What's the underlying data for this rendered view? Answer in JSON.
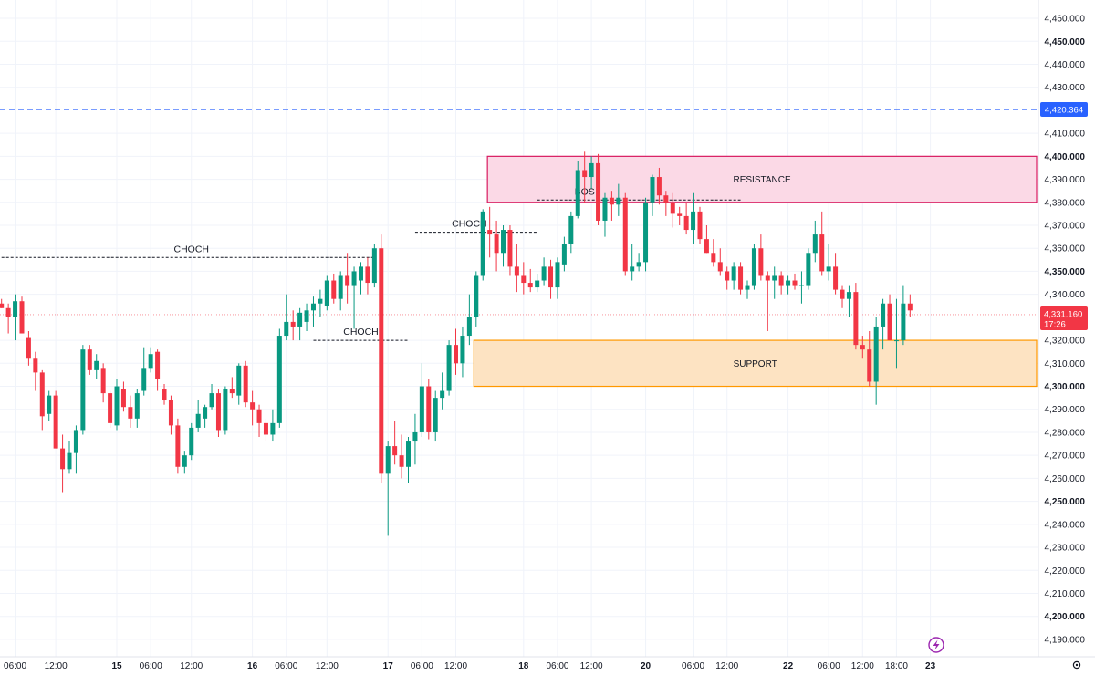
{
  "chart_data": {
    "type": "candlestick",
    "ylim": [
      4186,
      4462
    ],
    "y_ticks": [
      "4,460.000",
      "4,450.000",
      "4,440.000",
      "4,430.000",
      "4,410.000",
      "4,400.000",
      "4,390.000",
      "4,380.000",
      "4,370.000",
      "4,360.000",
      "4,350.000",
      "4,340.000",
      "4,320.000",
      "4,310.000",
      "4,300.000",
      "4,290.000",
      "4,280.000",
      "4,270.000",
      "4,260.000",
      "4,250.000",
      "4,240.000",
      "4,230.000",
      "4,220.000",
      "4,210.000",
      "4,200.000",
      "4,190.000"
    ],
    "y_tick_values": [
      4460,
      4450,
      4440,
      4430,
      4410,
      4400,
      4390,
      4380,
      4370,
      4360,
      4350,
      4340,
      4320,
      4310,
      4300,
      4290,
      4280,
      4270,
      4260,
      4250,
      4240,
      4230,
      4220,
      4210,
      4200,
      4190
    ],
    "y_tick_bold": [
      4450,
      4400,
      4350,
      4300,
      4250,
      4200
    ],
    "x_ticks": [
      {
        "label": "06:00",
        "i": 2,
        "bold": false
      },
      {
        "label": "12:00",
        "i": 8,
        "bold": false
      },
      {
        "label": "15",
        "i": 17,
        "bold": true
      },
      {
        "label": "06:00",
        "i": 22,
        "bold": false
      },
      {
        "label": "12:00",
        "i": 28,
        "bold": false
      },
      {
        "label": "16",
        "i": 37,
        "bold": true
      },
      {
        "label": "06:00",
        "i": 42,
        "bold": false
      },
      {
        "label": "12:00",
        "i": 48,
        "bold": false
      },
      {
        "label": "17",
        "i": 57,
        "bold": true
      },
      {
        "label": "06:00",
        "i": 62,
        "bold": false
      },
      {
        "label": "12:00",
        "i": 67,
        "bold": false
      },
      {
        "label": "18",
        "i": 77,
        "bold": true
      },
      {
        "label": "06:00",
        "i": 82,
        "bold": false
      },
      {
        "label": "12:00",
        "i": 87,
        "bold": false
      },
      {
        "label": "20",
        "i": 95,
        "bold": true
      },
      {
        "label": "06:00",
        "i": 102,
        "bold": false
      },
      {
        "label": "12:00",
        "i": 107,
        "bold": false
      },
      {
        "label": "22",
        "i": 116,
        "bold": true
      },
      {
        "label": "06:00",
        "i": 122,
        "bold": false
      },
      {
        "label": "12:00",
        "i": 127,
        "bold": false
      },
      {
        "label": "18:00",
        "i": 132,
        "bold": false
      },
      {
        "label": "23",
        "i": 137,
        "bold": true
      }
    ],
    "candles": [
      [
        4336,
        4338,
        4334,
        4334
      ],
      [
        4334,
        4336,
        4323,
        4330
      ],
      [
        4330,
        4340,
        4320,
        4337
      ],
      [
        4337,
        4339,
        4323,
        4323
      ],
      [
        4321,
        4324,
        4309,
        4312
      ],
      [
        4312,
        4315,
        4298,
        4306
      ],
      [
        4306,
        4307,
        4281,
        4287
      ],
      [
        4288,
        4298,
        4285,
        4296
      ],
      [
        4296,
        4298,
        4273,
        4273
      ],
      [
        4273,
        4279,
        4254,
        4264
      ],
      [
        4264,
        4276,
        4262,
        4271
      ],
      [
        4271,
        4283,
        4262,
        4281
      ],
      [
        4281,
        4318,
        4279,
        4316
      ],
      [
        4316,
        4318,
        4305,
        4307
      ],
      [
        4307,
        4314,
        4303,
        4311
      ],
      [
        4308,
        4310,
        4293,
        4297
      ],
      [
        4297,
        4298,
        4282,
        4284
      ],
      [
        4283,
        4303,
        4281,
        4300
      ],
      [
        4299,
        4302,
        4289,
        4291
      ],
      [
        4291,
        4296,
        4282,
        4286
      ],
      [
        4286,
        4299,
        4282,
        4297
      ],
      [
        4298,
        4317,
        4296,
        4308
      ],
      [
        4308,
        4317,
        4306,
        4314
      ],
      [
        4315,
        4316,
        4298,
        4303
      ],
      [
        4299,
        4301,
        4292,
        4294
      ],
      [
        4294,
        4296,
        4279,
        4283
      ],
      [
        4283,
        4286,
        4262,
        4265
      ],
      [
        4265,
        4272,
        4262,
        4270
      ],
      [
        4270,
        4284,
        4268,
        4282
      ],
      [
        4282,
        4294,
        4280,
        4288
      ],
      [
        4286,
        4292,
        4282,
        4291
      ],
      [
        4291,
        4301,
        4290,
        4297
      ],
      [
        4297,
        4299,
        4278,
        4281
      ],
      [
        4281,
        4300,
        4279,
        4299
      ],
      [
        4299,
        4304,
        4295,
        4297
      ],
      [
        4296,
        4310,
        4292,
        4309
      ],
      [
        4309,
        4311,
        4291,
        4293
      ],
      [
        4293,
        4298,
        4283,
        4290
      ],
      [
        4290,
        4292,
        4278,
        4284
      ],
      [
        4284,
        4286,
        4276,
        4279
      ],
      [
        4279,
        4290,
        4276,
        4284
      ],
      [
        4284,
        4325,
        4282,
        4322
      ],
      [
        4322,
        4340,
        4320,
        4328
      ],
      [
        4328,
        4333,
        4320,
        4326
      ],
      [
        4326,
        4334,
        4320,
        4332
      ],
      [
        4328,
        4336,
        4324,
        4333
      ],
      [
        4333,
        4339,
        4326,
        4336
      ],
      [
        4336,
        4342,
        4330,
        4338
      ],
      [
        4335,
        4348,
        4333,
        4346
      ],
      [
        4346,
        4349,
        4336,
        4338
      ],
      [
        4338,
        4350,
        4333,
        4348
      ],
      [
        4348,
        4358,
        4336,
        4344
      ],
      [
        4344,
        4352,
        4325,
        4350
      ],
      [
        4346,
        4354,
        4340,
        4352
      ],
      [
        4352,
        4356,
        4340,
        4345
      ],
      [
        4345,
        4362,
        4343,
        4360
      ],
      [
        4360,
        4366,
        4258,
        4262
      ],
      [
        4262,
        4276,
        4235,
        4274
      ],
      [
        4274,
        4285,
        4266,
        4270
      ],
      [
        4270,
        4279,
        4260,
        4265
      ],
      [
        4265,
        4278,
        4258,
        4276
      ],
      [
        4276,
        4288,
        4266,
        4280
      ],
      [
        4280,
        4310,
        4278,
        4300
      ],
      [
        4300,
        4303,
        4277,
        4280
      ],
      [
        4280,
        4298,
        4276,
        4295
      ],
      [
        4295,
        4306,
        4290,
        4298
      ],
      [
        4298,
        4320,
        4296,
        4318
      ],
      [
        4318,
        4325,
        4305,
        4310
      ],
      [
        4310,
        4326,
        4304,
        4322
      ],
      [
        4322,
        4340,
        4318,
        4330
      ],
      [
        4330,
        4350,
        4326,
        4348
      ],
      [
        4348,
        4377,
        4346,
        4376
      ],
      [
        4368,
        4378,
        4356,
        4366
      ],
      [
        4366,
        4372,
        4350,
        4358
      ],
      [
        4358,
        4370,
        4352,
        4368
      ],
      [
        4368,
        4370,
        4348,
        4352
      ],
      [
        4352,
        4362,
        4341,
        4348
      ],
      [
        4348,
        4354,
        4340,
        4345
      ],
      [
        4345,
        4351,
        4341,
        4343
      ],
      [
        4343,
        4349,
        4341,
        4346
      ],
      [
        4346,
        4356,
        4344,
        4352
      ],
      [
        4352,
        4355,
        4338,
        4343
      ],
      [
        4343,
        4356,
        4338,
        4354
      ],
      [
        4353,
        4365,
        4350,
        4362
      ],
      [
        4362,
        4376,
        4358,
        4374
      ],
      [
        4374,
        4398,
        4373,
        4394
      ],
      [
        4394,
        4402,
        4380,
        4391
      ],
      [
        4391,
        4400,
        4386,
        4397
      ],
      [
        4397,
        4401,
        4370,
        4372
      ],
      [
        4372,
        4384,
        4365,
        4382
      ],
      [
        4382,
        4385,
        4372,
        4379
      ],
      [
        4379,
        4388,
        4374,
        4382
      ],
      [
        4382,
        4384,
        4348,
        4350
      ],
      [
        4350,
        4362,
        4346,
        4352
      ],
      [
        4352,
        4358,
        4350,
        4354
      ],
      [
        4354,
        4382,
        4350,
        4380
      ],
      [
        4380,
        4392,
        4374,
        4391
      ],
      [
        4391,
        4395,
        4379,
        4383
      ],
      [
        4383,
        4385,
        4374,
        4380
      ],
      [
        4380,
        4384,
        4369,
        4375
      ],
      [
        4375,
        4378,
        4370,
        4374
      ],
      [
        4374,
        4380,
        4366,
        4368
      ],
      [
        4368,
        4384,
        4362,
        4376
      ],
      [
        4376,
        4378,
        4362,
        4364
      ],
      [
        4364,
        4370,
        4358,
        4358
      ],
      [
        4358,
        4364,
        4352,
        4354
      ],
      [
        4354,
        4360,
        4348,
        4350
      ],
      [
        4350,
        4352,
        4342,
        4346
      ],
      [
        4346,
        4354,
        4342,
        4352
      ],
      [
        4352,
        4354,
        4340,
        4342
      ],
      [
        4342,
        4346,
        4338,
        4344
      ],
      [
        4344,
        4362,
        4342,
        4360
      ],
      [
        4360,
        4366,
        4346,
        4348
      ],
      [
        4348,
        4350,
        4324,
        4346
      ],
      [
        4346,
        4352,
        4338,
        4348
      ],
      [
        4348,
        4350,
        4340,
        4344
      ],
      [
        4344,
        4348,
        4340,
        4346
      ],
      [
        4346,
        4349,
        4342,
        4344
      ],
      [
        4344,
        4350,
        4336,
        4344
      ],
      [
        4344,
        4360,
        4342,
        4358
      ],
      [
        4358,
        4372,
        4354,
        4366
      ],
      [
        4366,
        4376,
        4348,
        4350
      ],
      [
        4350,
        4362,
        4346,
        4352
      ],
      [
        4352,
        4358,
        4340,
        4342
      ],
      [
        4342,
        4344,
        4334,
        4338
      ],
      [
        4338,
        4344,
        4330,
        4341
      ],
      [
        4341,
        4345,
        4316,
        4318
      ],
      [
        4318,
        4322,
        4312,
        4316
      ],
      [
        4316,
        4324,
        4300,
        4302
      ],
      [
        4302,
        4330,
        4292,
        4326
      ],
      [
        4326,
        4338,
        4316,
        4336
      ],
      [
        4336,
        4340,
        4320,
        4320
      ],
      [
        4320,
        4338,
        4308,
        4320
      ],
      [
        4320,
        4344,
        4318,
        4336
      ],
      [
        4336,
        4340,
        4330,
        4333
      ]
    ],
    "horizontal_line": {
      "value": 4420.364,
      "label": "4,420.364",
      "color": "#2962ff"
    },
    "current_price": {
      "value": 4331.16,
      "label": "4,331.160",
      "countdown": "17:26",
      "color": "#f23645"
    },
    "zones": [
      {
        "name": "resistance",
        "label": "RESISTANCE",
        "top": 4400,
        "bottom": 4380,
        "start_i": 72,
        "fill": "#fbd9e6",
        "stroke": "#d81b60"
      },
      {
        "name": "support",
        "label": "SUPPORT",
        "top": 4320,
        "bottom": 4300,
        "start_i": 70,
        "fill": "#fde3c2",
        "stroke": "#ff9800"
      }
    ],
    "annotations": [
      {
        "name": "choch-1",
        "label": "CHOCH",
        "value": 4356,
        "from_i": 0,
        "to_i": 55,
        "label_i": 28,
        "dy": -6
      },
      {
        "name": "choch-2",
        "label": "CHOCH",
        "value": 4320,
        "from_i": 46,
        "to_i": 60,
        "label_i": 53,
        "dy": -6
      },
      {
        "name": "choch-3",
        "label": "CHOCH",
        "value": 4367,
        "from_i": 61,
        "to_i": 79,
        "label_i": 69,
        "dy": -6
      },
      {
        "name": "bos",
        "label": "BOS",
        "value": 4381,
        "from_i": 79,
        "to_i": 109,
        "label_i": 86,
        "dy": -6
      }
    ],
    "bull_color": "#089981",
    "bear_color": "#f23645"
  }
}
